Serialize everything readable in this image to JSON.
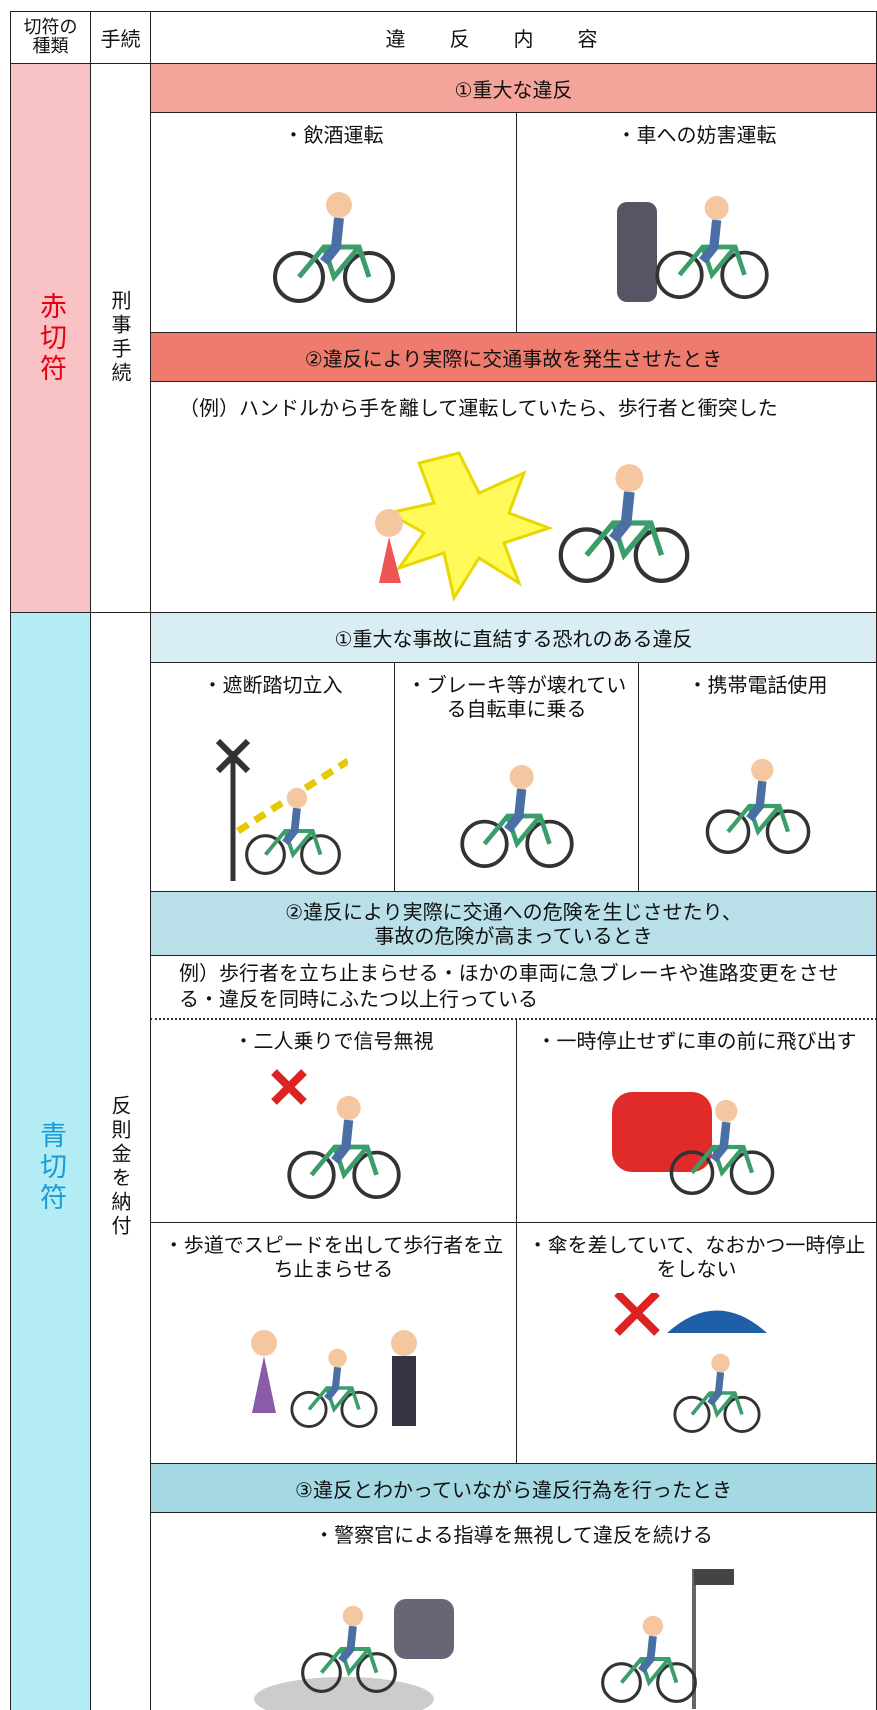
{
  "header": {
    "type": "切符の種類",
    "procedure": "手続",
    "content": "違反内容"
  },
  "sections": [
    {
      "type": "赤切符",
      "procedure": "刑事手続",
      "groups": [
        {
          "heading": "①重大な違反",
          "items": [
            "・飲酒運転",
            "・車への妨害運転"
          ]
        },
        {
          "heading": "②違反により実際に交通事故を発生させたとき",
          "example": "（例）ハンドルから手を離して運転していたら、歩行者と衝突した"
        }
      ]
    },
    {
      "type": "青切符",
      "procedure": "反則金を納付",
      "groups": [
        {
          "heading": "①重大な事故に直結する恐れのある違反",
          "items": [
            "・遮断踏切立入",
            "・ブレーキ等が壊れている自転車に乗る",
            "・携帯電話使用"
          ]
        },
        {
          "heading": "②違反により実際に交通への危険を生じさせたり、事故の危険が高まっているとき",
          "example": "例）歩行者を立ち止まらせる・ほかの車両に急ブレーキや進路変更をさせる・違反を同時にふたつ以上行っている",
          "items": [
            "・二人乗りで信号無視",
            "・一時停止せずに車の前に飛び出す",
            "・歩道でスピードを出して歩行者を立ち止まらせる",
            "・傘を差していて、なおかつ一時停止をしない"
          ]
        },
        {
          "heading": "③違反とわかっていながら違反行為を行ったとき",
          "items": [
            "・警察官による指導を無視して違反を続ける"
          ]
        }
      ]
    }
  ]
}
